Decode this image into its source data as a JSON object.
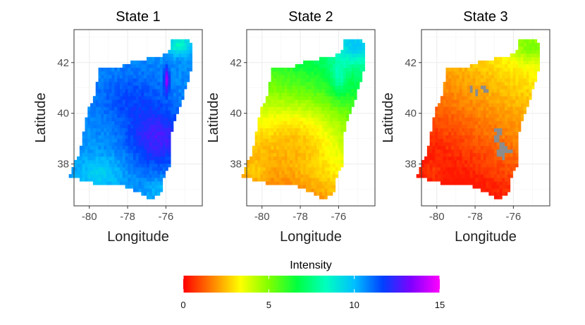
{
  "chart_data": {
    "type": "heatmap",
    "panels": [
      {
        "title": "State 1",
        "state": 1
      },
      {
        "title": "State 2",
        "state": 2
      },
      {
        "title": "State 3",
        "state": 3
      }
    ],
    "xlabel": "Longitude",
    "ylabel": "Latitude",
    "x_ticks": [
      -80,
      -78,
      -76
    ],
    "y_ticks": [
      38,
      40,
      42
    ],
    "x_tick_labels": [
      "-80",
      "-78",
      "-76"
    ],
    "y_tick_labels": [
      "38",
      "40",
      "42"
    ],
    "xlim": [
      -80.8,
      -74.1
    ],
    "ylim": [
      36.35,
      43.3
    ],
    "grid": true,
    "legend": {
      "title": "Intensity",
      "placement": "bottom",
      "range": [
        0,
        15
      ],
      "ticks": [
        0,
        5,
        10,
        15
      ],
      "tick_labels": [
        "0",
        "5",
        "10",
        "15"
      ],
      "colors": [
        "#ff0000",
        "#ff8000",
        "#ffff00",
        "#80ff00",
        "#00ff40",
        "#00ffbf",
        "#00bfff",
        "#0040ff",
        "#8000ff",
        "#ff00ff"
      ]
    },
    "missing_color": "#8c8c8c",
    "cell_size_deg": 0.14,
    "region_outline": [
      [
        -74.75,
        42.95
      ],
      [
        -75.8,
        42.9
      ],
      [
        -75.8,
        42.45
      ],
      [
        -76.4,
        42.2
      ],
      [
        -77.5,
        42.1
      ],
      [
        -78.5,
        41.8
      ],
      [
        -79.5,
        41.75
      ],
      [
        -79.7,
        40.7
      ],
      [
        -80.1,
        40.1
      ],
      [
        -80.25,
        39.5
      ],
      [
        -80.5,
        38.5
      ],
      [
        -81.1,
        37.5
      ],
      [
        -79.5,
        37.2
      ],
      [
        -78.0,
        37.1
      ],
      [
        -76.8,
        36.6
      ],
      [
        -76.2,
        36.85
      ],
      [
        -76.2,
        37.4
      ],
      [
        -75.8,
        37.9
      ],
      [
        -75.75,
        39.0
      ],
      [
        -75.55,
        39.65
      ],
      [
        -75.05,
        40.7
      ],
      [
        -74.7,
        41.7
      ],
      [
        -74.6,
        42.5
      ]
    ],
    "missing_points_state3": [
      [
        -78.2,
        41.0
      ],
      [
        -77.9,
        40.85
      ],
      [
        -77.6,
        41.05
      ],
      [
        -77.4,
        40.9
      ],
      [
        -76.95,
        39.35
      ],
      [
        -76.7,
        39.25
      ],
      [
        -76.85,
        39.05
      ],
      [
        -76.6,
        38.7
      ],
      [
        -76.4,
        38.55
      ],
      [
        -76.7,
        38.45
      ],
      [
        -76.2,
        38.5
      ],
      [
        -76.5,
        38.35
      ]
    ]
  }
}
